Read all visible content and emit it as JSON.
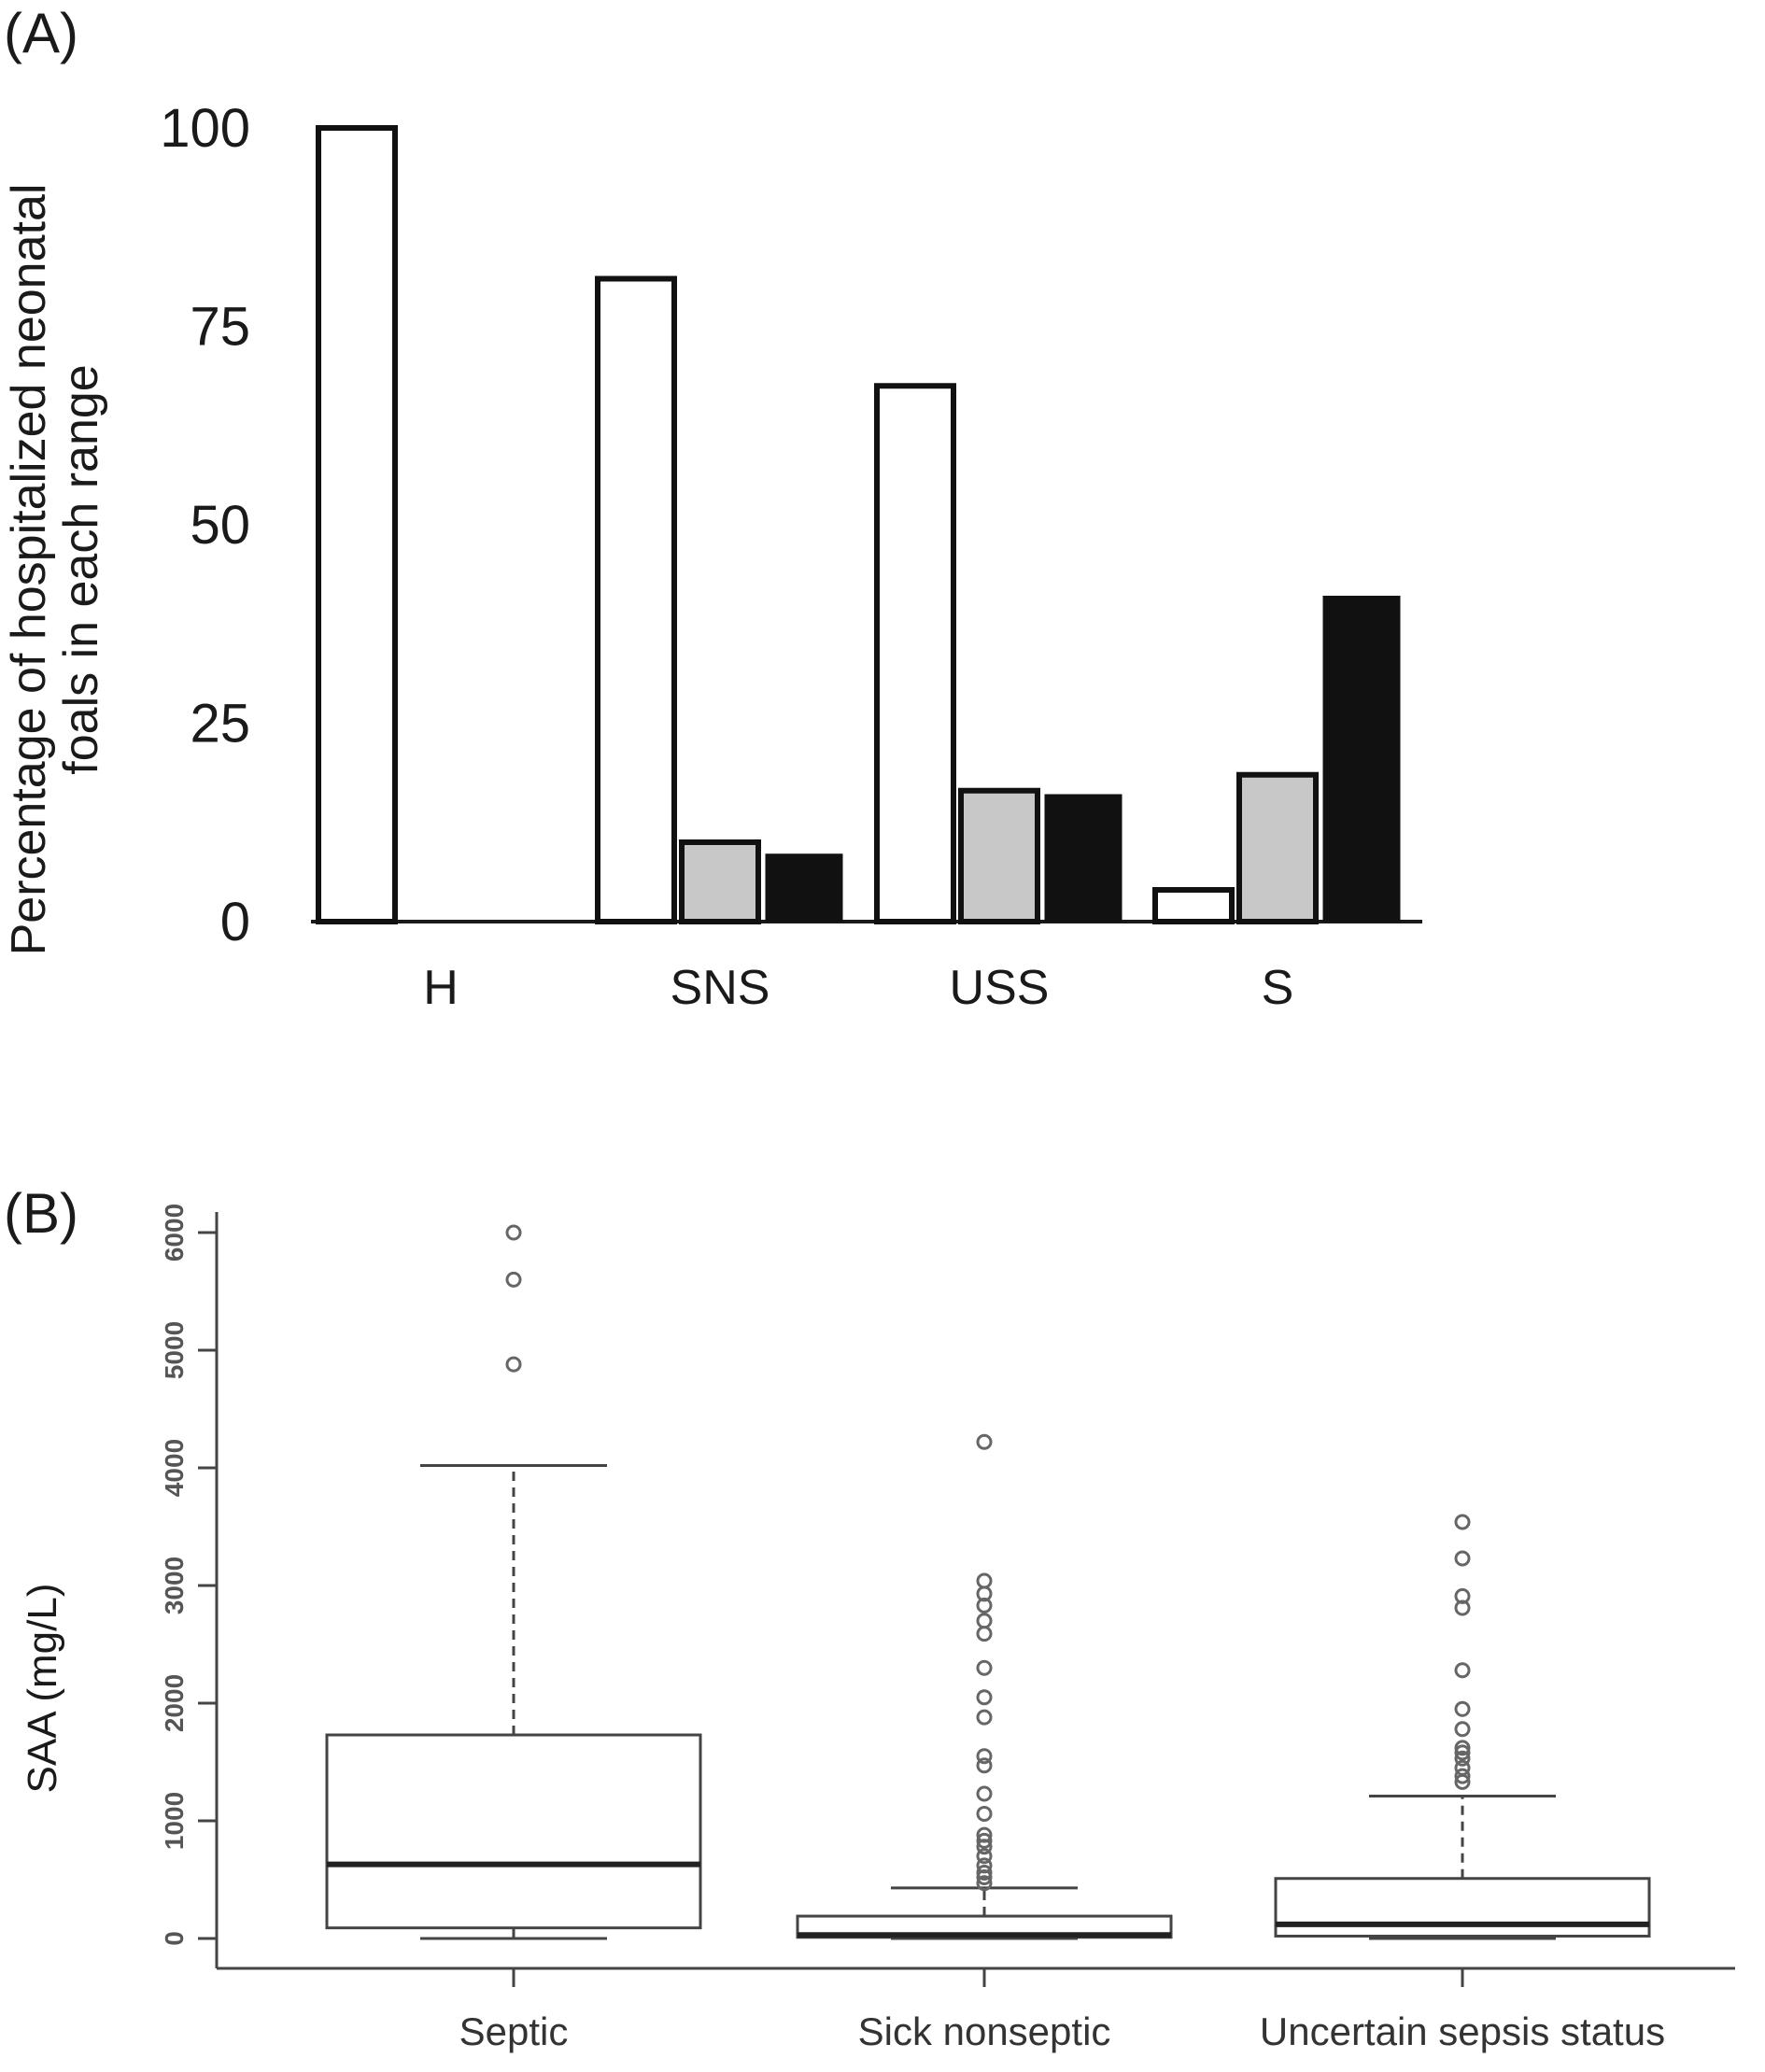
{
  "panels": {
    "a_label": "(A)",
    "b_label": "(B)"
  },
  "chart_data": [
    {
      "type": "bar",
      "title": "",
      "xlabel": "",
      "ylabel": "Percentage of hospitalized neonatal foals in each range",
      "ylim": [
        0,
        100
      ],
      "yticks": [
        0,
        25,
        50,
        75,
        100
      ],
      "categories": [
        "H",
        "SNS",
        "USS",
        "S"
      ],
      "series": [
        {
          "values": [
            100,
            81,
            67.5,
            4
          ],
          "color": "#ffffff"
        },
        {
          "values": [
            0,
            10,
            16.5,
            18.5
          ],
          "color": "#c8c8c8"
        },
        {
          "values": [
            0,
            8.5,
            16,
            41
          ],
          "color": "#111111"
        }
      ],
      "grid": false,
      "legend": "none"
    },
    {
      "type": "box",
      "title": "",
      "xlabel": "",
      "ylabel": "SAA (mg/L)",
      "ylim": [
        0,
        6000
      ],
      "yticks": [
        0,
        1000,
        2000,
        3000,
        4000,
        5000,
        6000
      ],
      "categories": [
        "Septic",
        "Sick nonseptic",
        "Uncertain sepsis status"
      ],
      "boxes": [
        {
          "whisker_low": 0,
          "q1": 90,
          "median": 630,
          "q3": 1730,
          "whisker_high": 4020,
          "outliers": [
            4880,
            5600,
            6000
          ]
        },
        {
          "whisker_low": 0,
          "q1": 10,
          "median": 30,
          "q3": 190,
          "whisker_high": 430,
          "outliers": [
            470,
            520,
            560,
            620,
            700,
            780,
            830,
            880,
            1060,
            1230,
            1470,
            1550,
            1880,
            2050,
            2300,
            2590,
            2700,
            2830,
            2930,
            3040,
            4220
          ]
        },
        {
          "whisker_low": 0,
          "q1": 20,
          "median": 120,
          "q3": 510,
          "whisker_high": 1210,
          "outliers": [
            1330,
            1380,
            1450,
            1530,
            1580,
            1620,
            1780,
            1950,
            2280,
            2810,
            2910,
            3230,
            3540
          ]
        }
      ],
      "grid": false,
      "legend": "none"
    }
  ]
}
